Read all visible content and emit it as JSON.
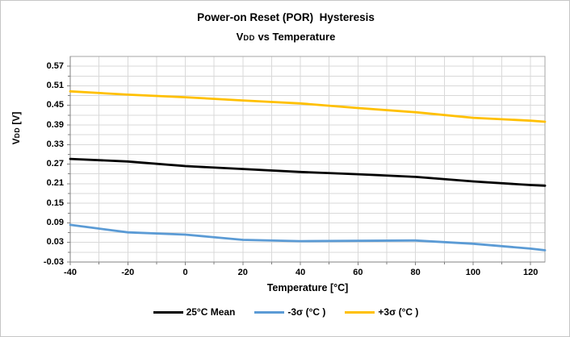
{
  "title": {
    "line1": "Power-on Reset (POR)  Hysteresis",
    "line2_v": "V",
    "line2_dd": "DD",
    "line2_rest": " vs Temperature"
  },
  "y_axis": {
    "label_v": "V",
    "label_dd": "DD",
    "label_rest": " [V]",
    "ticks": [
      "0.57",
      "0.51",
      "0.45",
      "0.39",
      "0.33",
      "0.27",
      "0.21",
      "0.15",
      "0.09",
      "0.03",
      "-0.03"
    ]
  },
  "x_axis": {
    "label": "Temperature [°C]",
    "ticks": [
      "-40",
      "-20",
      "0",
      "20",
      "40",
      "60",
      "80",
      "100",
      "120"
    ]
  },
  "legend": [
    {
      "id": "mean-25c",
      "label": "25°C Mean",
      "color": "#000000"
    },
    {
      "id": "minus-3-sigma",
      "label": "-3σ (°C )",
      "color": "#5B9BD5"
    },
    {
      "id": "plus-3-sigma",
      "label": "+3σ (°C )",
      "color": "#FFC000"
    }
  ],
  "colors": {
    "gridline": "#d9d9d9",
    "axis": "#808080",
    "plot_border": "#a6a6a6",
    "mean": "#000000",
    "minus_3_sigma": "#5B9BD5",
    "plus_3_sigma": "#FFC000"
  },
  "chart_data": {
    "type": "line",
    "title": "Power-on Reset (POR) Hysteresis",
    "subtitle": "VDD vs Temperature",
    "xlabel": "Temperature [°C]",
    "ylabel": "VDD [V]",
    "xlim": [
      -40,
      125
    ],
    "ylim": [
      -0.03,
      0.6
    ],
    "x_minor_step": 10,
    "x_major_step": 20,
    "y_minor_step": 0.03,
    "y_major_step": 0.06,
    "grid": true,
    "legend_position": "bottom",
    "x": [
      -40,
      -20,
      0,
      20,
      40,
      60,
      80,
      100,
      120,
      125
    ],
    "series": [
      {
        "id": "mean-25c",
        "name": "25°C Mean",
        "color": "#000000",
        "values": [
          0.286,
          0.278,
          0.264,
          0.255,
          0.246,
          0.239,
          0.231,
          0.217,
          0.206,
          0.204
        ]
      },
      {
        "id": "minus-3-sigma",
        "name": "-3σ (°C )",
        "color": "#5B9BD5",
        "values": [
          0.084,
          0.061,
          0.054,
          0.038,
          0.034,
          0.035,
          0.036,
          0.026,
          0.011,
          0.006
        ]
      },
      {
        "id": "plus-3-sigma",
        "name": "+3σ (°C )",
        "color": "#FFC000",
        "values": [
          0.493,
          0.483,
          0.475,
          0.465,
          0.456,
          0.442,
          0.429,
          0.412,
          0.403,
          0.4
        ]
      }
    ]
  }
}
